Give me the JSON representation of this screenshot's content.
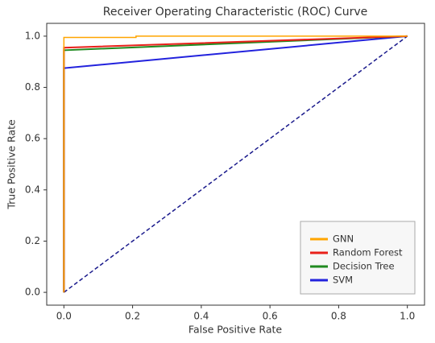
{
  "chart_data": {
    "type": "line",
    "title": "Receiver Operating Characteristic (ROC) Curve",
    "x_label": "False Positive Rate",
    "y_label": "True Positive Rate",
    "xlim": [
      -0.05,
      1.05
    ],
    "ylim": [
      -0.05,
      1.05
    ],
    "xticks": [
      {
        "value": 0,
        "label": "0.0"
      },
      {
        "value": 0.2,
        "label": "0.2"
      },
      {
        "value": 0.4,
        "label": "0.4"
      },
      {
        "value": 0.6,
        "label": "0.6"
      },
      {
        "value": 0.8,
        "label": "0.8"
      },
      {
        "value": 1,
        "label": "1.0"
      }
    ],
    "yticks": [
      {
        "value": 0,
        "label": "0.0"
      },
      {
        "value": 0.2,
        "label": "0.2"
      },
      {
        "value": 0.4,
        "label": "0.4"
      },
      {
        "value": 0.6,
        "label": "0.6"
      },
      {
        "value": 0.8,
        "label": "0.8"
      },
      {
        "value": 1,
        "label": "1.0"
      }
    ],
    "legend_position": "lower right",
    "series": [
      {
        "name": "GNN",
        "color": "#ffa500",
        "width": 1.5,
        "x": [
          0,
          0,
          0.21,
          0.21,
          1
        ],
        "values": [
          0,
          0.995,
          0.995,
          1,
          1
        ]
      },
      {
        "name": "Random Forest",
        "color": "#e8201a",
        "width": 2,
        "x": [
          0,
          0,
          1
        ],
        "values": [
          0,
          0.955,
          1
        ]
      },
      {
        "name": "Decision Tree",
        "color": "#1f8a1f",
        "width": 2,
        "x": [
          0,
          0,
          1
        ],
        "values": [
          0,
          0.945,
          1
        ]
      },
      {
        "name": "SVM",
        "color": "#2222dd",
        "width": 2,
        "x": [
          0,
          0,
          1
        ],
        "values": [
          0,
          0.875,
          1
        ]
      },
      {
        "color": "#1a1a8c",
        "width": 1.5,
        "dashed": true,
        "x": [
          0,
          1
        ],
        "values": [
          0,
          1
        ]
      }
    ]
  }
}
